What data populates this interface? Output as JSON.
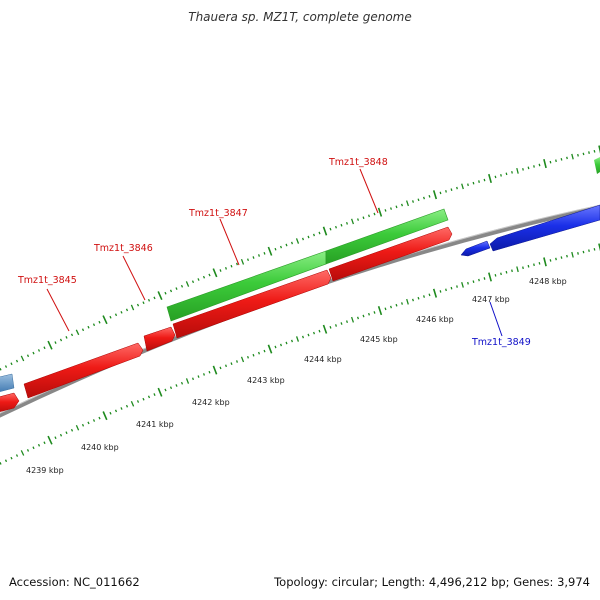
{
  "title": "Thauera sp. MZ1T, complete genome",
  "footer": {
    "accession": "Accession: NC_011662",
    "summary": "Topology: circular; Length: 4,496,212 bp; Genes: 3,974"
  },
  "colors": {
    "backbone": "#888888",
    "ticks": "#1e8a1e",
    "forward_orf": "#e0201e",
    "reverse_orf": "#1a2fe0",
    "feature": "#3cc83c",
    "other_gene": "#5b8fc0"
  },
  "kbp_labels": [
    "4239 kbp",
    "4240 kbp",
    "4241 kbp",
    "4242 kbp",
    "4243 kbp",
    "4244 kbp",
    "4245 kbp",
    "4246 kbp",
    "4247 kbp",
    "4248 kbp"
  ],
  "gene_labels": [
    {
      "name": "Tmz1t_3845",
      "color": "#d01010"
    },
    {
      "name": "Tmz1t_3846",
      "color": "#d01010"
    },
    {
      "name": "Tmz1t_3847",
      "color": "#d01010"
    },
    {
      "name": "Tmz1t_3848",
      "color": "#d01010"
    },
    {
      "name": "Tmz1t_3849",
      "color": "#1010c8"
    }
  ]
}
